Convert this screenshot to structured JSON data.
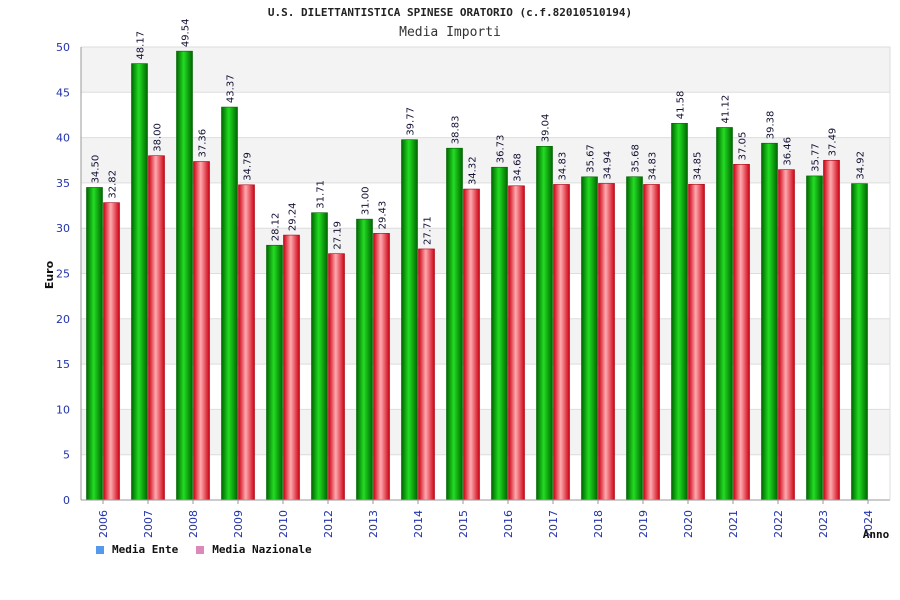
{
  "chart_data": {
    "type": "bar",
    "title": "U.S. DILETTANTISTICA SPINESE ORATORIO (c.f.82010510194)",
    "subtitle": "Media Importi",
    "xlabel": "Anno",
    "ylabel": "Euro",
    "ylim": [
      0,
      50
    ],
    "yticks": [
      0,
      5,
      10,
      15,
      20,
      25,
      30,
      35,
      40,
      45,
      50
    ],
    "grid": true,
    "legend_position": "bottom-left",
    "categories": [
      "2006",
      "2007",
      "2008",
      "2009",
      "2010",
      "2012",
      "2013",
      "2014",
      "2015",
      "2016",
      "2017",
      "2018",
      "2019",
      "2020",
      "2021",
      "2022",
      "2023",
      "2024"
    ],
    "series": [
      {
        "name": "Media Ente",
        "color": "#00bb00",
        "legend_color": "#5599ee",
        "values": [
          34.5,
          48.17,
          49.54,
          43.37,
          28.12,
          31.71,
          31.0,
          39.77,
          38.83,
          36.73,
          39.04,
          35.67,
          35.68,
          41.58,
          41.12,
          39.38,
          35.77,
          34.92
        ],
        "labels": [
          "34.50",
          "48.17",
          "49.54",
          "43.37",
          "28.12",
          "31.71",
          "31.00",
          "39.77",
          "38.83",
          "36.73",
          "39.04",
          "35.67",
          "35.68",
          "41.58",
          "41.12",
          "39.38",
          "35.77",
          "34.92"
        ]
      },
      {
        "name": "Media Nazionale",
        "color": "#ee2233",
        "legend_color": "#dd88bb",
        "values": [
          32.82,
          38.0,
          37.36,
          34.79,
          29.24,
          27.19,
          29.43,
          27.71,
          34.32,
          34.68,
          34.83,
          34.94,
          34.83,
          34.85,
          37.05,
          36.46,
          37.49,
          null
        ],
        "labels": [
          "32.82",
          "38.00",
          "37.36",
          "34.79",
          "29.24",
          "27.19",
          "29.43",
          "27.71",
          "34.32",
          "34.68",
          "34.83",
          "34.94",
          "34.83",
          "34.85",
          "37.05",
          "36.46",
          "37.49",
          ""
        ]
      }
    ]
  }
}
